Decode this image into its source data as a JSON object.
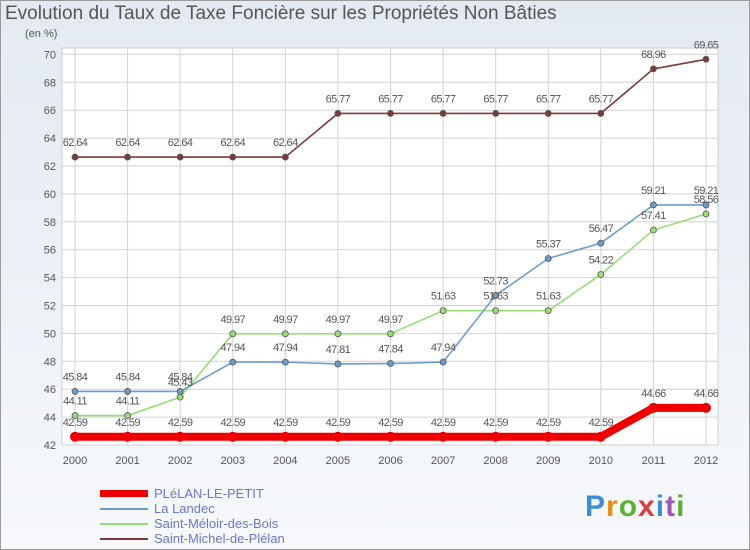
{
  "title": "Evolution du Taux de Taxe Foncière sur les Propriétés Non Bâties",
  "unit": "(en %)",
  "logo": {
    "text": "Proxiti"
  },
  "chart_data": {
    "type": "line",
    "title": "Evolution du Taux de Taxe Foncière sur les Propriétés Non Bâties",
    "ylabel": "(en %)",
    "xlabel": "",
    "ylim": [
      42,
      71
    ],
    "yticks": [
      42,
      44,
      46,
      48,
      50,
      52,
      54,
      56,
      58,
      60,
      62,
      64,
      66,
      68,
      70
    ],
    "x": [
      "2000",
      "2001",
      "2002",
      "2003",
      "2004",
      "2005",
      "2006",
      "2007",
      "2008",
      "2009",
      "2010",
      "2011",
      "2012"
    ],
    "grid": true,
    "legend_position": "bottom-left",
    "series": [
      {
        "name": "PLéLAN-LE-PETIT",
        "color": "#ee0000",
        "values": [
          42.59,
          42.59,
          42.59,
          42.59,
          42.59,
          42.59,
          42.59,
          42.59,
          42.59,
          42.59,
          42.59,
          44.66,
          44.66
        ],
        "labels": [
          "42.59",
          "42.59",
          "42.59",
          "42.59",
          "42.59",
          "42.59",
          "42.59",
          "42.59",
          "42.59",
          "42.59",
          "42.59",
          "44.66",
          "44.66"
        ]
      },
      {
        "name": "La Landec",
        "color": "#6b9ccc",
        "values": [
          45.84,
          45.84,
          45.84,
          47.94,
          47.94,
          47.81,
          47.84,
          47.94,
          52.73,
          55.37,
          56.47,
          59.21,
          59.21
        ],
        "labels": [
          "45.84",
          "45.84",
          "45.84",
          "47.94",
          "47.94",
          "47.81",
          "47.84",
          "47.94",
          "52.73",
          "55.37",
          "56.47",
          "59.21",
          "59.21"
        ]
      },
      {
        "name": "Saint-Méloir-des-Bois",
        "color": "#99dd77",
        "values": [
          44.11,
          44.11,
          45.43,
          49.97,
          49.97,
          49.97,
          49.97,
          51.63,
          51.63,
          51.63,
          54.22,
          57.41,
          58.56
        ],
        "labels": [
          "44.11",
          "44.11",
          "45.43",
          "49.97",
          "49.97",
          "49.97",
          "49.97",
          "51.63",
          "51.63",
          "51.63",
          "54.22",
          "57.41",
          "58.56"
        ]
      },
      {
        "name": "Saint-Michel-de-Plélan",
        "color": "#7a3a3a",
        "values": [
          62.64,
          62.64,
          62.64,
          62.64,
          62.64,
          65.77,
          65.77,
          65.77,
          65.77,
          65.77,
          65.77,
          68.96,
          69.65
        ],
        "labels": [
          "62.64",
          "62.64",
          "62.64",
          "62.64",
          "62.64",
          "65.77",
          "65.77",
          "65.77",
          "65.77",
          "65.77",
          "65.77",
          "68.96",
          "69.65"
        ]
      }
    ]
  }
}
